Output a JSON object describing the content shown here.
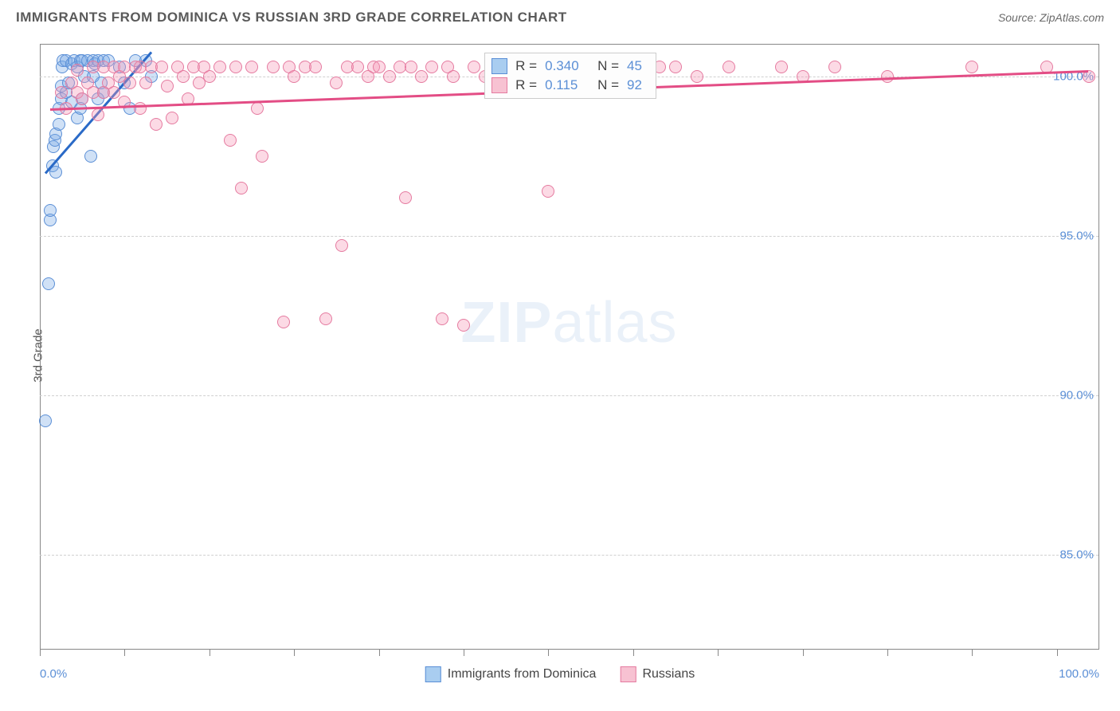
{
  "header": {
    "title": "IMMIGRANTS FROM DOMINICA VS RUSSIAN 3RD GRADE CORRELATION CHART",
    "source": "Source: ZipAtlas.com"
  },
  "chart": {
    "type": "scatter",
    "y_axis_title": "3rd Grade",
    "x_min": 0,
    "x_max": 100,
    "y_min": 82,
    "y_max": 101,
    "x_label_min": "0.0%",
    "x_label_max": "100.0%",
    "y_ticks": [
      {
        "v": 85,
        "label": "85.0%"
      },
      {
        "v": 90,
        "label": "90.0%"
      },
      {
        "v": 95,
        "label": "95.0%"
      },
      {
        "v": 100,
        "label": "100.0%"
      }
    ],
    "x_tick_positions": [
      0,
      8,
      16,
      24,
      32,
      40,
      48,
      56,
      64,
      72,
      80,
      88,
      96
    ],
    "background_color": "#ffffff",
    "grid_color": "#d0d0d0",
    "series": [
      {
        "name": "Immigrants from Dominica",
        "fill": "rgba(120,170,230,0.35)",
        "stroke": "#5b8fd6",
        "swatch_fill": "#a9cdf0",
        "swatch_stroke": "#5b8fd6",
        "r_label": "R =",
        "r_value": "0.340",
        "n_label": "N =",
        "n_value": "45",
        "trend": {
          "x1": 0.5,
          "y1": 97.0,
          "x2": 10.5,
          "y2": 100.8,
          "color": "#2a6ac7"
        },
        "points": [
          [
            0.5,
            89.2
          ],
          [
            0.8,
            93.5
          ],
          [
            1.0,
            95.5
          ],
          [
            1.0,
            95.8
          ],
          [
            1.2,
            97.2
          ],
          [
            1.3,
            97.8
          ],
          [
            1.4,
            98.0
          ],
          [
            1.5,
            98.2
          ],
          [
            1.5,
            97.0
          ],
          [
            1.8,
            98.5
          ],
          [
            1.8,
            99.0
          ],
          [
            2.0,
            99.3
          ],
          [
            2.0,
            99.7
          ],
          [
            2.1,
            100.3
          ],
          [
            2.2,
            100.5
          ],
          [
            2.5,
            99.5
          ],
          [
            2.5,
            100.5
          ],
          [
            2.7,
            99.8
          ],
          [
            3.0,
            100.4
          ],
          [
            3.0,
            99.2
          ],
          [
            3.2,
            100.5
          ],
          [
            3.5,
            100.3
          ],
          [
            3.5,
            98.7
          ],
          [
            3.8,
            99.0
          ],
          [
            3.8,
            100.5
          ],
          [
            4.0,
            99.3
          ],
          [
            4.0,
            100.5
          ],
          [
            4.2,
            100.0
          ],
          [
            4.5,
            100.5
          ],
          [
            4.8,
            97.5
          ],
          [
            5.0,
            100.5
          ],
          [
            5.0,
            100.0
          ],
          [
            5.2,
            100.4
          ],
          [
            5.5,
            99.3
          ],
          [
            5.5,
            100.5
          ],
          [
            5.8,
            99.8
          ],
          [
            6.0,
            100.5
          ],
          [
            6.0,
            99.5
          ],
          [
            6.5,
            100.5
          ],
          [
            7.5,
            100.3
          ],
          [
            8.0,
            99.8
          ],
          [
            8.5,
            99.0
          ],
          [
            9.0,
            100.5
          ],
          [
            10.0,
            100.5
          ],
          [
            10.5,
            100.0
          ]
        ]
      },
      {
        "name": "Russians",
        "fill": "rgba(245,150,180,0.35)",
        "stroke": "#e57ba0",
        "swatch_fill": "#f7c2d2",
        "swatch_stroke": "#e57ba0",
        "r_label": "R =",
        "r_value": "0.115",
        "n_label": "N =",
        "n_value": "92",
        "trend": {
          "x1": 1.0,
          "y1": 99.0,
          "x2": 99.0,
          "y2": 100.2,
          "color": "#e34d85"
        },
        "points": [
          [
            2.0,
            99.5
          ],
          [
            2.5,
            99.0
          ],
          [
            3.0,
            99.8
          ],
          [
            3.5,
            99.5
          ],
          [
            3.5,
            100.2
          ],
          [
            4.0,
            99.3
          ],
          [
            4.5,
            99.8
          ],
          [
            5.0,
            99.5
          ],
          [
            5.0,
            100.3
          ],
          [
            5.5,
            98.8
          ],
          [
            6.0,
            99.5
          ],
          [
            6.0,
            100.3
          ],
          [
            6.5,
            99.8
          ],
          [
            7.0,
            99.5
          ],
          [
            7.0,
            100.3
          ],
          [
            7.5,
            100.0
          ],
          [
            8.0,
            99.2
          ],
          [
            8.0,
            100.3
          ],
          [
            8.5,
            99.8
          ],
          [
            9.0,
            100.3
          ],
          [
            9.5,
            99.0
          ],
          [
            9.5,
            100.3
          ],
          [
            10.0,
            99.8
          ],
          [
            10.5,
            100.3
          ],
          [
            11.0,
            98.5
          ],
          [
            11.5,
            100.3
          ],
          [
            12.0,
            99.7
          ],
          [
            12.5,
            98.7
          ],
          [
            13.0,
            100.3
          ],
          [
            13.5,
            100.0
          ],
          [
            14.0,
            99.3
          ],
          [
            14.5,
            100.3
          ],
          [
            15.0,
            99.8
          ],
          [
            15.5,
            100.3
          ],
          [
            16.0,
            100.0
          ],
          [
            17.0,
            100.3
          ],
          [
            18.0,
            98.0
          ],
          [
            18.5,
            100.3
          ],
          [
            19.0,
            96.5
          ],
          [
            20.0,
            100.3
          ],
          [
            20.5,
            99.0
          ],
          [
            21.0,
            97.5
          ],
          [
            22.0,
            100.3
          ],
          [
            23.0,
            92.3
          ],
          [
            23.5,
            100.3
          ],
          [
            24.0,
            100.0
          ],
          [
            25.0,
            100.3
          ],
          [
            26.0,
            100.3
          ],
          [
            27.0,
            92.4
          ],
          [
            28.0,
            99.8
          ],
          [
            28.5,
            94.7
          ],
          [
            29.0,
            100.3
          ],
          [
            30.0,
            100.3
          ],
          [
            31.0,
            100.0
          ],
          [
            31.5,
            100.3
          ],
          [
            32.0,
            100.3
          ],
          [
            33.0,
            100.0
          ],
          [
            34.0,
            100.3
          ],
          [
            34.5,
            96.2
          ],
          [
            35.0,
            100.3
          ],
          [
            36.0,
            100.0
          ],
          [
            37.0,
            100.3
          ],
          [
            38.0,
            92.4
          ],
          [
            38.5,
            100.3
          ],
          [
            39.0,
            100.0
          ],
          [
            40.0,
            92.2
          ],
          [
            41.0,
            100.3
          ],
          [
            42.0,
            100.0
          ],
          [
            43.0,
            100.3
          ],
          [
            44.5,
            100.3
          ],
          [
            46.0,
            100.0
          ],
          [
            47.0,
            100.3
          ],
          [
            48.0,
            96.4
          ],
          [
            49.0,
            100.3
          ],
          [
            50.0,
            100.0
          ],
          [
            51.0,
            100.3
          ],
          [
            52.0,
            100.3
          ],
          [
            53.0,
            100.3
          ],
          [
            54.5,
            100.3
          ],
          [
            56.0,
            100.0
          ],
          [
            57.0,
            100.3
          ],
          [
            58.5,
            100.3
          ],
          [
            60.0,
            100.3
          ],
          [
            62.0,
            100.0
          ],
          [
            65.0,
            100.3
          ],
          [
            70.0,
            100.3
          ],
          [
            72.0,
            100.0
          ],
          [
            75.0,
            100.3
          ],
          [
            80.0,
            100.0
          ],
          [
            88.0,
            100.3
          ],
          [
            95.0,
            100.3
          ],
          [
            99.0,
            100.0
          ]
        ]
      }
    ]
  },
  "legend": {
    "item1": "Immigrants from Dominica",
    "item2": "Russians"
  },
  "watermark": {
    "zip": "ZIP",
    "atlas": "atlas"
  }
}
